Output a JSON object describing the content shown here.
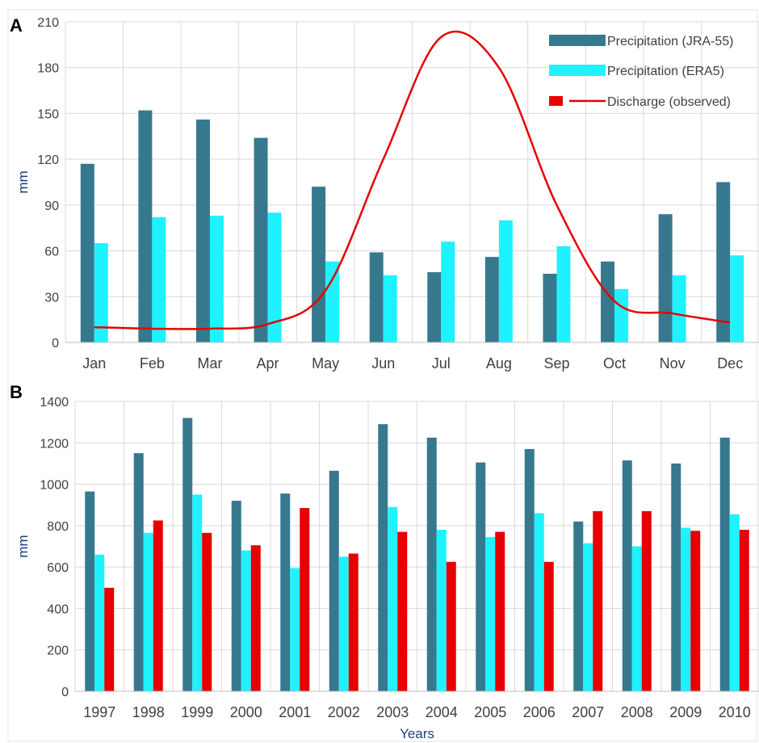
{
  "colors": {
    "jra55": "#36798f",
    "era5": "#1ff2ff",
    "discharge": "#e60000",
    "grid": "#d9d9d9"
  },
  "chart_data": [
    {
      "type": "bar",
      "panel_label": "A",
      "ylabel": "mm",
      "xlabel": "",
      "ylim": [
        0,
        210
      ],
      "yticks": [
        0,
        30,
        60,
        90,
        120,
        150,
        180,
        210
      ],
      "grid": "vertical and horizontal",
      "legend_position": "top-right",
      "categories": [
        "Jan",
        "Feb",
        "Mar",
        "Apr",
        "May",
        "Jun",
        "Jul",
        "Aug",
        "Sep",
        "Oct",
        "Nov",
        "Dec"
      ],
      "series": [
        {
          "name": "Precipitation (JRA-55)",
          "kind": "bar",
          "values": [
            117,
            152,
            146,
            134,
            102,
            59,
            46,
            56,
            45,
            53,
            84,
            105
          ]
        },
        {
          "name": "Precipitation (ERA5)",
          "kind": "bar",
          "values": [
            65,
            82,
            83,
            85,
            53,
            44,
            66,
            80,
            63,
            35,
            44,
            57
          ]
        },
        {
          "name": "Discharge (observed)",
          "kind": "line",
          "values": [
            10,
            9,
            9,
            12,
            34,
            120,
            200,
            180,
            90,
            27,
            19,
            13
          ]
        }
      ]
    },
    {
      "type": "bar",
      "panel_label": "B",
      "ylabel": "mm",
      "xlabel": "Years",
      "ylim": [
        0,
        1400
      ],
      "yticks": [
        0,
        200,
        400,
        600,
        800,
        1000,
        1200,
        1400
      ],
      "grid": "vertical and horizontal",
      "categories": [
        "1997",
        "1998",
        "1999",
        "2000",
        "2001",
        "2002",
        "2003",
        "2004",
        "2005",
        "2006",
        "2007",
        "2008",
        "2009",
        "2010"
      ],
      "series": [
        {
          "name": "Precipitation (JRA-55)",
          "values": [
            965,
            1150,
            1320,
            920,
            955,
            1065,
            1290,
            1225,
            1105,
            1170,
            820,
            1115,
            1100,
            1225
          ]
        },
        {
          "name": "Precipitation (ERA5)",
          "values": [
            660,
            765,
            950,
            680,
            595,
            650,
            890,
            780,
            745,
            860,
            715,
            700,
            790,
            855
          ]
        },
        {
          "name": "Discharge (observed)",
          "values": [
            500,
            825,
            765,
            705,
            885,
            665,
            770,
            625,
            770,
            625,
            870,
            870,
            775,
            780
          ]
        }
      ]
    }
  ]
}
